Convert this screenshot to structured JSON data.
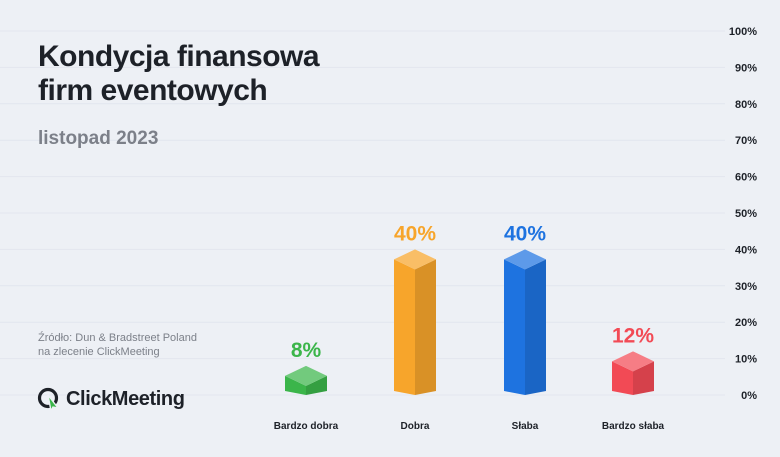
{
  "header": {
    "title_line1": "Kondycja finansowa",
    "title_line2": "firm eventowych",
    "subtitle": "listopad 2023"
  },
  "source": {
    "line1": "Źródło: Dun & Bradstreet Poland",
    "line2": "na zlecenie ClickMeeting"
  },
  "logo": {
    "name": "ClickMeeting",
    "icon": "clickmeeting-logo-icon"
  },
  "chart_data": {
    "type": "bar",
    "categories": [
      "Bardzo dobra",
      "Dobra",
      "Słaba",
      "Bardzo słaba"
    ],
    "values": [
      8,
      40,
      40,
      12
    ],
    "value_labels": [
      "8%",
      "40%",
      "40%",
      "12%"
    ],
    "colors": [
      "#3bb54a",
      "#f7a52b",
      "#1e73e0",
      "#f24a55"
    ],
    "ylim": [
      0,
      100
    ],
    "yticks": [
      "0%",
      "10%",
      "20%",
      "30%",
      "40%",
      "50%",
      "60%",
      "70%",
      "80%",
      "90%",
      "100%"
    ],
    "axis_position": "right",
    "grid": true
  }
}
